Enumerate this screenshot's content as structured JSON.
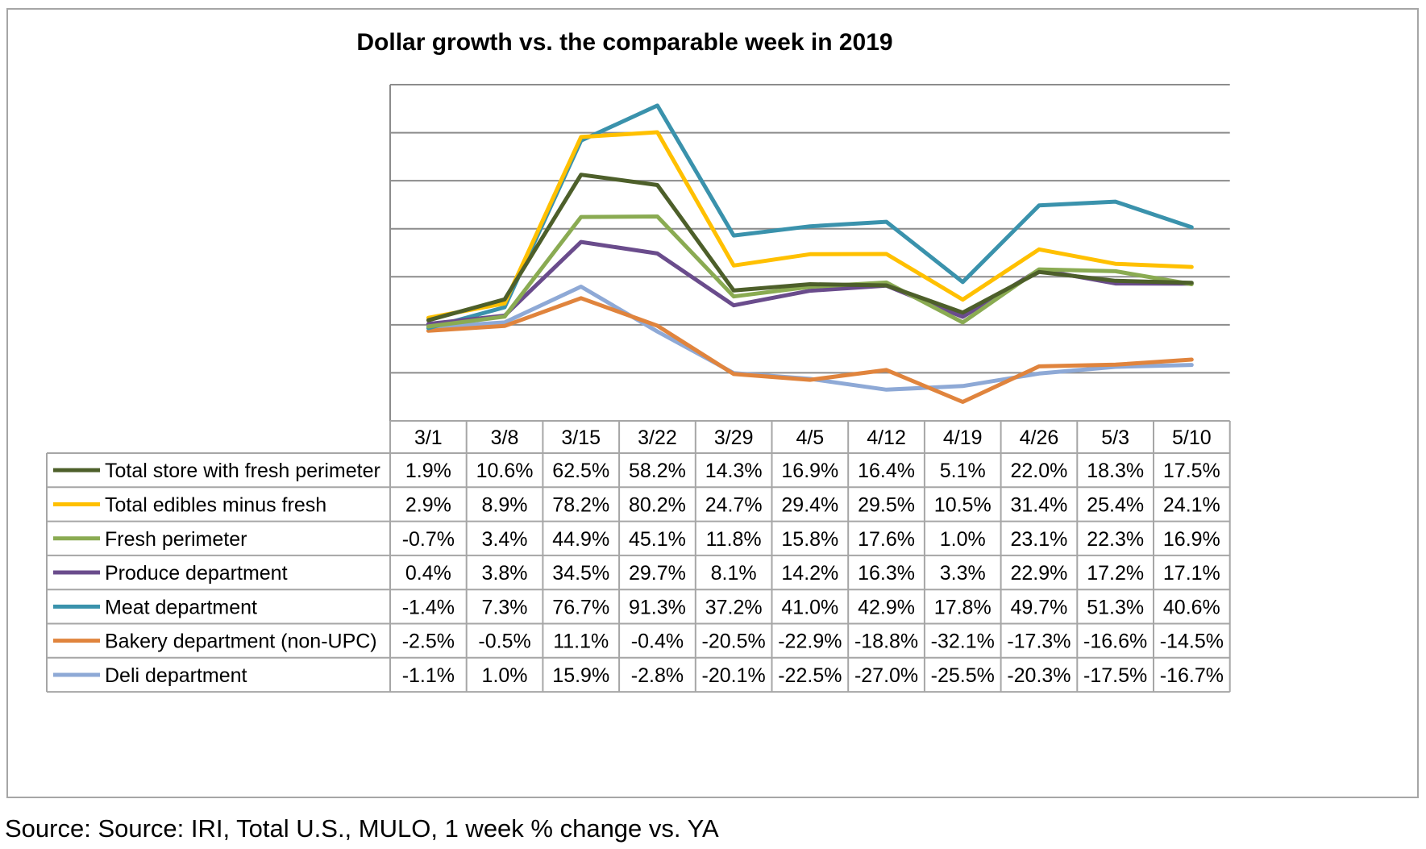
{
  "source": "Source: Source: IRI, Total U.S., MULO, 1 week % change vs. YA",
  "chart_data": {
    "type": "line",
    "title": "Dollar growth vs. the comparable week in 2019",
    "xlabel": "",
    "ylabel": "",
    "ylim": [
      -40,
      100
    ],
    "grid": true,
    "legend": "table-left",
    "categories": [
      "3/1",
      "3/8",
      "3/15",
      "3/22",
      "3/29",
      "4/5",
      "4/12",
      "4/19",
      "4/26",
      "5/3",
      "5/10"
    ],
    "series": [
      {
        "name": "Total store with fresh perimeter",
        "color": "#4d5f2a",
        "values": [
          1.9,
          10.6,
          62.5,
          58.2,
          14.3,
          16.9,
          16.4,
          5.1,
          22.0,
          18.3,
          17.5
        ],
        "labels": [
          "1.9%",
          "10.6%",
          "62.5%",
          "58.2%",
          "14.3%",
          "16.9%",
          "16.4%",
          "5.1%",
          "22.0%",
          "18.3%",
          "17.5%"
        ]
      },
      {
        "name": "Total edibles minus fresh",
        "color": "#ffc000",
        "values": [
          2.9,
          8.9,
          78.2,
          80.2,
          24.7,
          29.4,
          29.5,
          10.5,
          31.4,
          25.4,
          24.1
        ],
        "labels": [
          "2.9%",
          "8.9%",
          "78.2%",
          "80.2%",
          "24.7%",
          "29.4%",
          "29.5%",
          "10.5%",
          "31.4%",
          "25.4%",
          "24.1%"
        ]
      },
      {
        "name": "Fresh perimeter",
        "color": "#8aab52",
        "values": [
          -0.7,
          3.4,
          44.9,
          45.1,
          11.8,
          15.8,
          17.6,
          1.0,
          23.1,
          22.3,
          16.9
        ],
        "labels": [
          "-0.7%",
          "3.4%",
          "44.9%",
          "45.1%",
          "11.8%",
          "15.8%",
          "17.6%",
          "1.0%",
          "23.1%",
          "22.3%",
          "16.9%"
        ]
      },
      {
        "name": "Produce department",
        "color": "#6a4c8c",
        "values": [
          0.4,
          3.8,
          34.5,
          29.7,
          8.1,
          14.2,
          16.3,
          3.3,
          22.9,
          17.2,
          17.1
        ],
        "labels": [
          "0.4%",
          "3.8%",
          "34.5%",
          "29.7%",
          "8.1%",
          "14.2%",
          "16.3%",
          "3.3%",
          "22.9%",
          "17.2%",
          "17.1%"
        ]
      },
      {
        "name": "Meat department",
        "color": "#3a92ac",
        "values": [
          -1.4,
          7.3,
          76.7,
          91.3,
          37.2,
          41.0,
          42.9,
          17.8,
          49.7,
          51.3,
          40.6
        ],
        "labels": [
          "-1.4%",
          "7.3%",
          "76.7%",
          "91.3%",
          "37.2%",
          "41.0%",
          "42.9%",
          "17.8%",
          "49.7%",
          "51.3%",
          "40.6%"
        ]
      },
      {
        "name": "Bakery department (non-UPC)",
        "color": "#e0843d",
        "values": [
          -2.5,
          -0.5,
          11.1,
          -0.4,
          -20.5,
          -22.9,
          -18.8,
          -32.1,
          -17.3,
          -16.6,
          -14.5
        ],
        "labels": [
          "-2.5%",
          "-0.5%",
          "11.1%",
          "-0.4%",
          "-20.5%",
          "-22.9%",
          "-18.8%",
          "-32.1%",
          "-17.3%",
          "-16.6%",
          "-14.5%"
        ]
      },
      {
        "name": "Deli department",
        "color": "#8ea9d6",
        "values": [
          -1.1,
          1.0,
          15.9,
          -2.8,
          -20.1,
          -22.5,
          -27.0,
          -25.5,
          -20.3,
          -17.5,
          -16.7
        ],
        "labels": [
          "-1.1%",
          "1.0%",
          "15.9%",
          "-2.8%",
          "-20.1%",
          "-22.5%",
          "-27.0%",
          "-25.5%",
          "-20.3%",
          "-17.5%",
          "-16.7%"
        ]
      }
    ]
  }
}
